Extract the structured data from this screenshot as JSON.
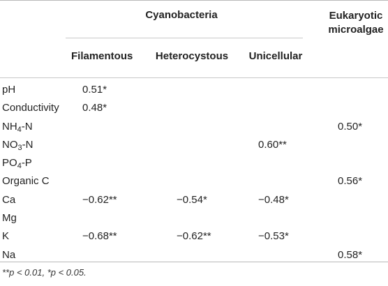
{
  "header": {
    "group_label": "Cyanobacteria",
    "eukaryotic_label": "Eukaryotic microalgae",
    "sub_filamentous": "Filamentous",
    "sub_heterocystous": "Heterocystous",
    "sub_unicellular": "Unicellular"
  },
  "rows": [
    {
      "label": "pH",
      "label_sub": "",
      "label_suffix": "",
      "filamentous": "0.51*",
      "heterocystous": "",
      "unicellular": "",
      "eukaryotic": ""
    },
    {
      "label": "Conductivity",
      "label_sub": "",
      "label_suffix": "",
      "filamentous": "0.48*",
      "heterocystous": "",
      "unicellular": "",
      "eukaryotic": ""
    },
    {
      "label": "NH",
      "label_sub": "4",
      "label_suffix": "-N",
      "filamentous": "",
      "heterocystous": "",
      "unicellular": "",
      "eukaryotic": "0.50*"
    },
    {
      "label": "NO",
      "label_sub": "3",
      "label_suffix": "-N",
      "filamentous": "",
      "heterocystous": "",
      "unicellular": "0.60**",
      "eukaryotic": ""
    },
    {
      "label": "PO",
      "label_sub": "4",
      "label_suffix": "-P",
      "filamentous": "",
      "heterocystous": "",
      "unicellular": "",
      "eukaryotic": ""
    },
    {
      "label": "Organic C",
      "label_sub": "",
      "label_suffix": "",
      "filamentous": "",
      "heterocystous": "",
      "unicellular": "",
      "eukaryotic": "0.56*"
    },
    {
      "label": "Ca",
      "label_sub": "",
      "label_suffix": "",
      "filamentous": "−0.62**",
      "heterocystous": "−0.54*",
      "unicellular": "−0.48*",
      "eukaryotic": ""
    },
    {
      "label": "Mg",
      "label_sub": "",
      "label_suffix": "",
      "filamentous": "",
      "heterocystous": "",
      "unicellular": "",
      "eukaryotic": ""
    },
    {
      "label": "K",
      "label_sub": "",
      "label_suffix": "",
      "filamentous": "−0.68**",
      "heterocystous": "−0.62**",
      "unicellular": "−0.53*",
      "eukaryotic": ""
    },
    {
      "label": "Na",
      "label_sub": "",
      "label_suffix": "",
      "filamentous": "",
      "heterocystous": "",
      "unicellular": "",
      "eukaryotic": "0.58*"
    }
  ],
  "footnote": "**p < 0.01, *p < 0.05."
}
